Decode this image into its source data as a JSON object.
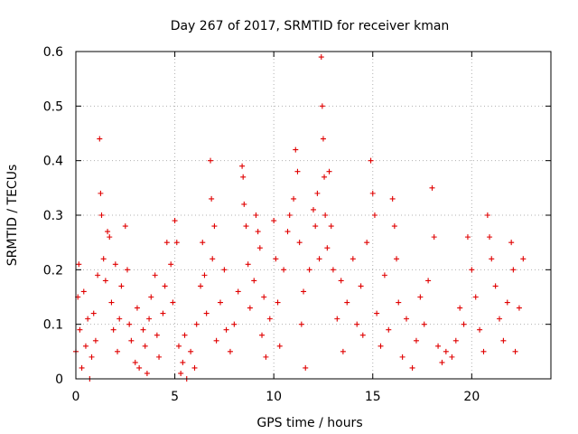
{
  "chart_data": {
    "type": "scatter",
    "title": "Day 267 of 2017, SRMTID for receiver kman",
    "xlabel": "GPS time / hours",
    "ylabel": "SRMTID / TECUs",
    "xlim": [
      0,
      24
    ],
    "ylim": [
      0,
      0.6
    ],
    "x_ticks": [
      0,
      5,
      10,
      15,
      20
    ],
    "x_tick_labels": [
      "0",
      "5",
      "10",
      "15",
      "20"
    ],
    "y_ticks": [
      0,
      0.1,
      0.2,
      0.3,
      0.4,
      0.5,
      0.6
    ],
    "y_tick_labels": [
      "0",
      "0.1",
      "0.2",
      "0.3",
      "0.4",
      "0.5",
      "0.6"
    ],
    "grid": true,
    "legend": "none",
    "marker": "plus",
    "colors": {
      "points": "#e00000",
      "grid": "#b0b0b0",
      "axis": "#000000"
    },
    "series": [
      {
        "points": [
          [
            0.0,
            0.05
          ],
          [
            0.1,
            0.15
          ],
          [
            0.15,
            0.21
          ],
          [
            0.2,
            0.09
          ],
          [
            0.3,
            0.02
          ],
          [
            0.4,
            0.16
          ],
          [
            0.5,
            0.06
          ],
          [
            0.6,
            0.11
          ],
          [
            0.7,
            0.0
          ],
          [
            0.8,
            0.04
          ],
          [
            0.9,
            0.12
          ],
          [
            1.0,
            0.07
          ],
          [
            1.1,
            0.19
          ],
          [
            1.2,
            0.44
          ],
          [
            1.25,
            0.34
          ],
          [
            1.3,
            0.3
          ],
          [
            1.4,
            0.22
          ],
          [
            1.5,
            0.18
          ],
          [
            1.6,
            0.27
          ],
          [
            1.7,
            0.26
          ],
          [
            1.8,
            0.14
          ],
          [
            1.9,
            0.09
          ],
          [
            2.0,
            0.21
          ],
          [
            2.1,
            0.05
          ],
          [
            2.2,
            0.11
          ],
          [
            2.3,
            0.17
          ],
          [
            2.5,
            0.28
          ],
          [
            2.6,
            0.2
          ],
          [
            2.7,
            0.1
          ],
          [
            2.8,
            0.07
          ],
          [
            3.0,
            0.03
          ],
          [
            3.1,
            0.13
          ],
          [
            3.2,
            0.02
          ],
          [
            3.4,
            0.09
          ],
          [
            3.5,
            0.06
          ],
          [
            3.6,
            0.01
          ],
          [
            3.7,
            0.11
          ],
          [
            3.8,
            0.15
          ],
          [
            4.0,
            0.19
          ],
          [
            4.1,
            0.08
          ],
          [
            4.2,
            0.04
          ],
          [
            4.4,
            0.12
          ],
          [
            4.5,
            0.17
          ],
          [
            4.6,
            0.25
          ],
          [
            4.8,
            0.21
          ],
          [
            4.9,
            0.14
          ],
          [
            5.0,
            0.29
          ],
          [
            5.1,
            0.25
          ],
          [
            5.2,
            0.06
          ],
          [
            5.3,
            0.01
          ],
          [
            5.4,
            0.03
          ],
          [
            5.5,
            0.08
          ],
          [
            5.6,
            0.0
          ],
          [
            5.8,
            0.05
          ],
          [
            6.0,
            0.02
          ],
          [
            6.1,
            0.1
          ],
          [
            6.3,
            0.17
          ],
          [
            6.4,
            0.25
          ],
          [
            6.5,
            0.19
          ],
          [
            6.6,
            0.12
          ],
          [
            6.8,
            0.4
          ],
          [
            6.85,
            0.33
          ],
          [
            6.9,
            0.22
          ],
          [
            7.0,
            0.28
          ],
          [
            7.1,
            0.07
          ],
          [
            7.3,
            0.14
          ],
          [
            7.5,
            0.2
          ],
          [
            7.6,
            0.09
          ],
          [
            7.8,
            0.05
          ],
          [
            8.0,
            0.1
          ],
          [
            8.2,
            0.16
          ],
          [
            8.4,
            0.39
          ],
          [
            8.45,
            0.37
          ],
          [
            8.5,
            0.32
          ],
          [
            8.6,
            0.28
          ],
          [
            8.7,
            0.21
          ],
          [
            8.8,
            0.13
          ],
          [
            9.0,
            0.18
          ],
          [
            9.1,
            0.3
          ],
          [
            9.2,
            0.27
          ],
          [
            9.3,
            0.24
          ],
          [
            9.4,
            0.08
          ],
          [
            9.5,
            0.15
          ],
          [
            9.6,
            0.04
          ],
          [
            9.8,
            0.11
          ],
          [
            10.0,
            0.29
          ],
          [
            10.1,
            0.22
          ],
          [
            10.2,
            0.14
          ],
          [
            10.3,
            0.06
          ],
          [
            10.5,
            0.2
          ],
          [
            10.7,
            0.27
          ],
          [
            10.8,
            0.3
          ],
          [
            11.0,
            0.33
          ],
          [
            11.1,
            0.42
          ],
          [
            11.2,
            0.38
          ],
          [
            11.3,
            0.25
          ],
          [
            11.4,
            0.1
          ],
          [
            11.5,
            0.16
          ],
          [
            11.6,
            0.02
          ],
          [
            11.8,
            0.2
          ],
          [
            12.0,
            0.31
          ],
          [
            12.1,
            0.28
          ],
          [
            12.2,
            0.34
          ],
          [
            12.3,
            0.22
          ],
          [
            12.4,
            0.59
          ],
          [
            12.45,
            0.5
          ],
          [
            12.5,
            0.44
          ],
          [
            12.55,
            0.37
          ],
          [
            12.6,
            0.3
          ],
          [
            12.7,
            0.24
          ],
          [
            12.8,
            0.38
          ],
          [
            12.9,
            0.28
          ],
          [
            13.0,
            0.2
          ],
          [
            13.2,
            0.11
          ],
          [
            13.4,
            0.18
          ],
          [
            13.5,
            0.05
          ],
          [
            13.7,
            0.14
          ],
          [
            14.0,
            0.22
          ],
          [
            14.2,
            0.1
          ],
          [
            14.4,
            0.17
          ],
          [
            14.5,
            0.08
          ],
          [
            14.7,
            0.25
          ],
          [
            14.9,
            0.4
          ],
          [
            15.0,
            0.34
          ],
          [
            15.1,
            0.3
          ],
          [
            15.2,
            0.12
          ],
          [
            15.4,
            0.06
          ],
          [
            15.6,
            0.19
          ],
          [
            15.8,
            0.09
          ],
          [
            16.0,
            0.33
          ],
          [
            16.1,
            0.28
          ],
          [
            16.2,
            0.22
          ],
          [
            16.3,
            0.14
          ],
          [
            16.5,
            0.04
          ],
          [
            16.7,
            0.11
          ],
          [
            17.0,
            0.02
          ],
          [
            17.2,
            0.07
          ],
          [
            17.4,
            0.15
          ],
          [
            17.6,
            0.1
          ],
          [
            17.8,
            0.18
          ],
          [
            18.0,
            0.35
          ],
          [
            18.1,
            0.26
          ],
          [
            18.3,
            0.06
          ],
          [
            18.5,
            0.03
          ],
          [
            18.7,
            0.05
          ],
          [
            19.0,
            0.04
          ],
          [
            19.2,
            0.07
          ],
          [
            19.4,
            0.13
          ],
          [
            19.6,
            0.1
          ],
          [
            19.8,
            0.26
          ],
          [
            20.0,
            0.2
          ],
          [
            20.2,
            0.15
          ],
          [
            20.4,
            0.09
          ],
          [
            20.6,
            0.05
          ],
          [
            20.8,
            0.3
          ],
          [
            20.9,
            0.26
          ],
          [
            21.0,
            0.22
          ],
          [
            21.2,
            0.17
          ],
          [
            21.4,
            0.11
          ],
          [
            21.6,
            0.07
          ],
          [
            21.8,
            0.14
          ],
          [
            22.0,
            0.25
          ],
          [
            22.1,
            0.2
          ],
          [
            22.2,
            0.05
          ],
          [
            22.4,
            0.13
          ],
          [
            22.6,
            0.22
          ]
        ]
      }
    ]
  }
}
